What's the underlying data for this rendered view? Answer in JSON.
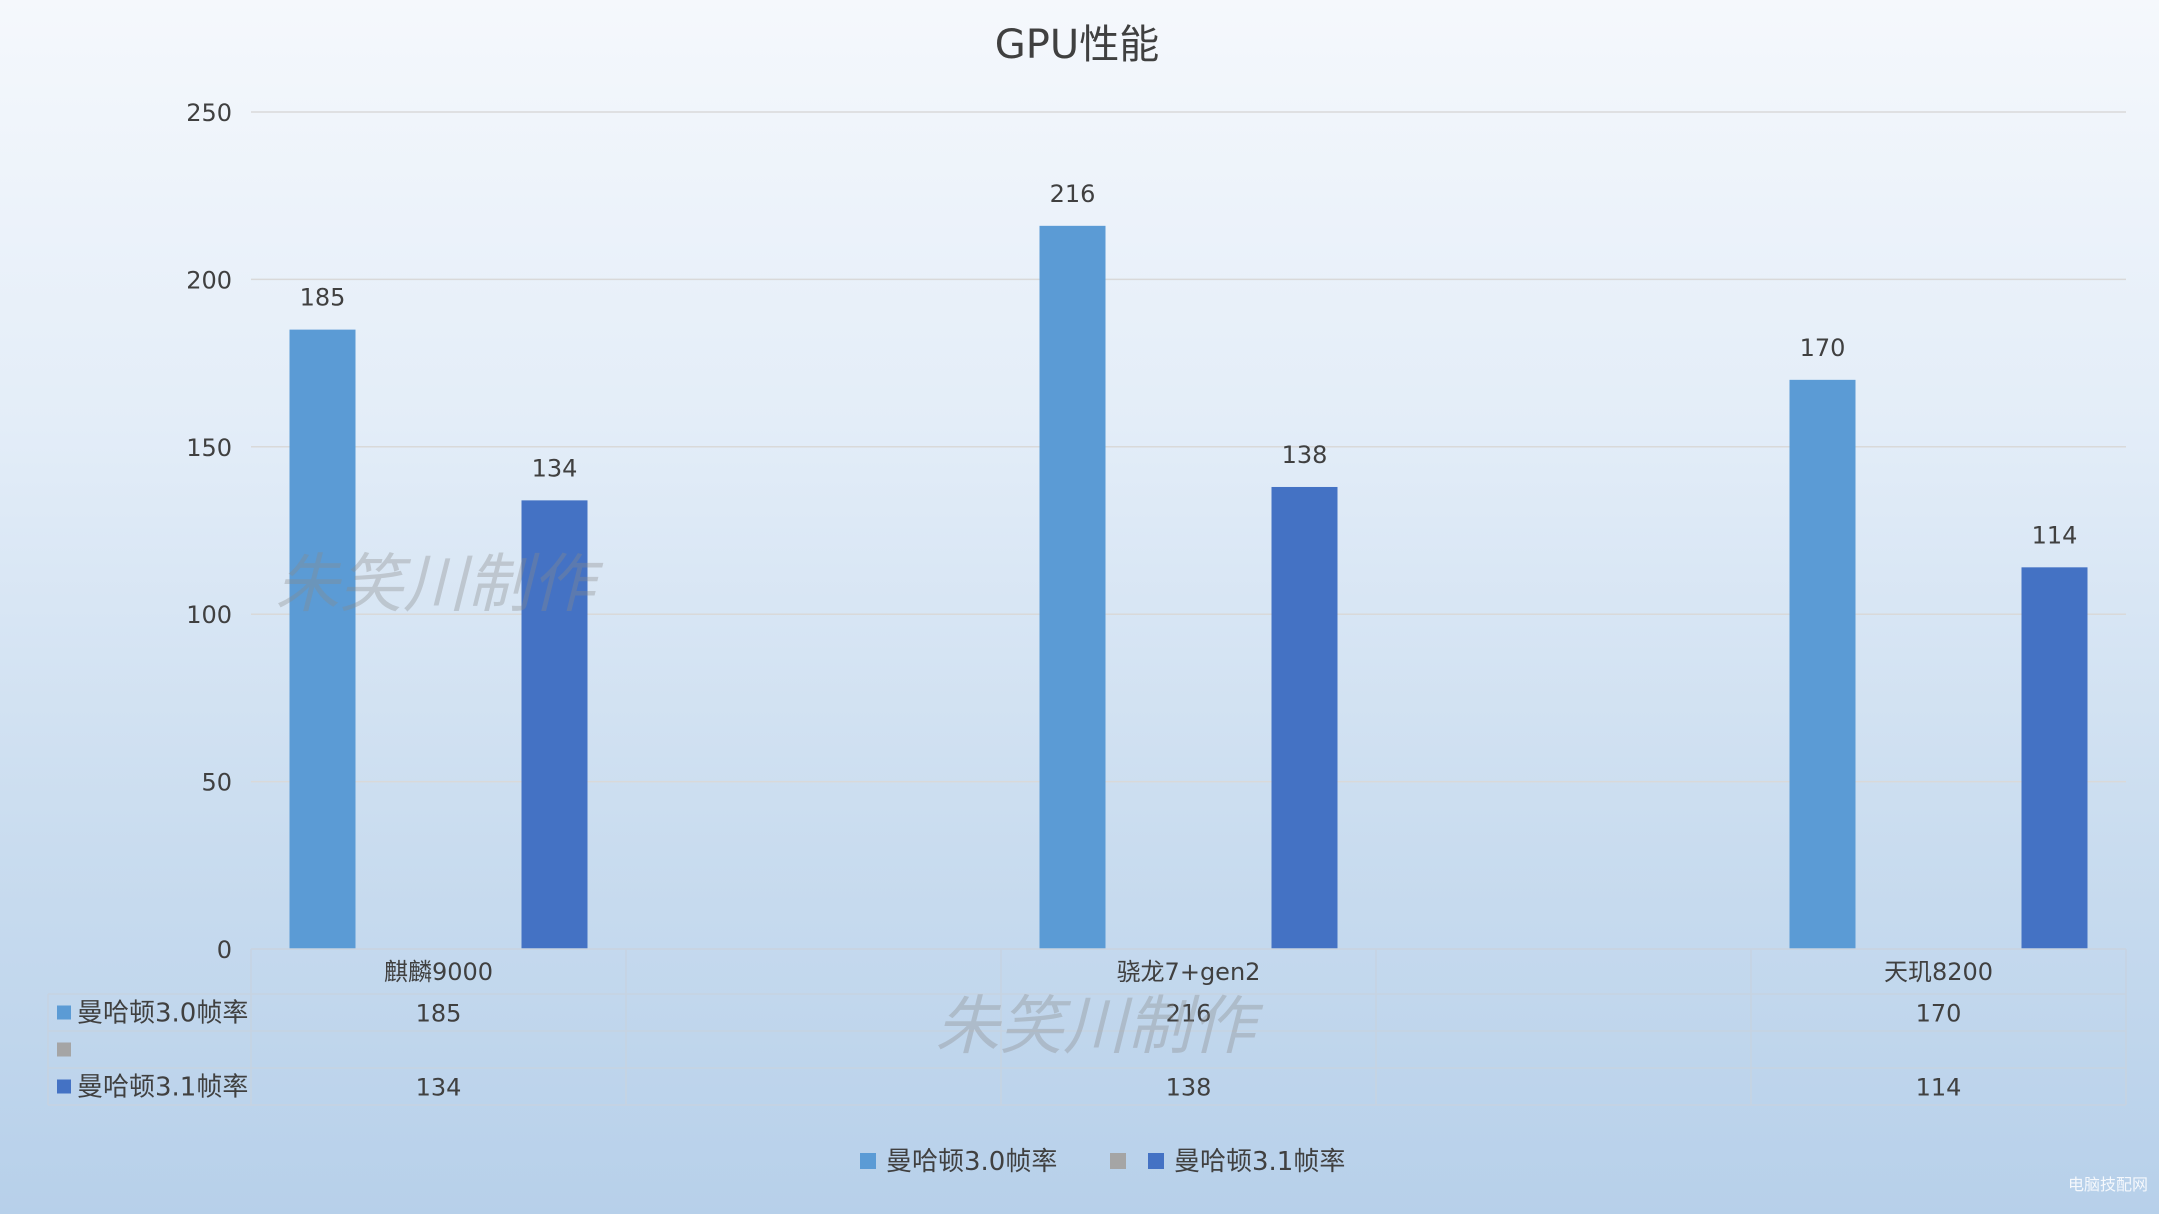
{
  "chart_data": {
    "type": "bar",
    "title": "GPU性能",
    "categories": [
      "麒麟9000",
      "",
      "骁龙7+gen2",
      "",
      "天玑8200"
    ],
    "series": [
      {
        "name": "曼哈顿3.0帧率",
        "values": [
          185,
          null,
          216,
          null,
          170
        ],
        "color": "#5b9bd5"
      },
      {
        "name": "",
        "values": [
          null,
          null,
          null,
          null,
          null
        ],
        "color": "#a5a5a5"
      },
      {
        "name": "曼哈顿3.1帧率",
        "values": [
          134,
          null,
          138,
          null,
          114
        ],
        "color": "#4472c4"
      }
    ],
    "ylim": [
      0,
      250
    ],
    "yticks": [
      0,
      50,
      100,
      150,
      200,
      250
    ],
    "data_labels": true,
    "grid": true,
    "data_table": true,
    "legend": "bottom"
  },
  "watermark": "朱笑川制作",
  "corner_watermark": "电脑技配网"
}
